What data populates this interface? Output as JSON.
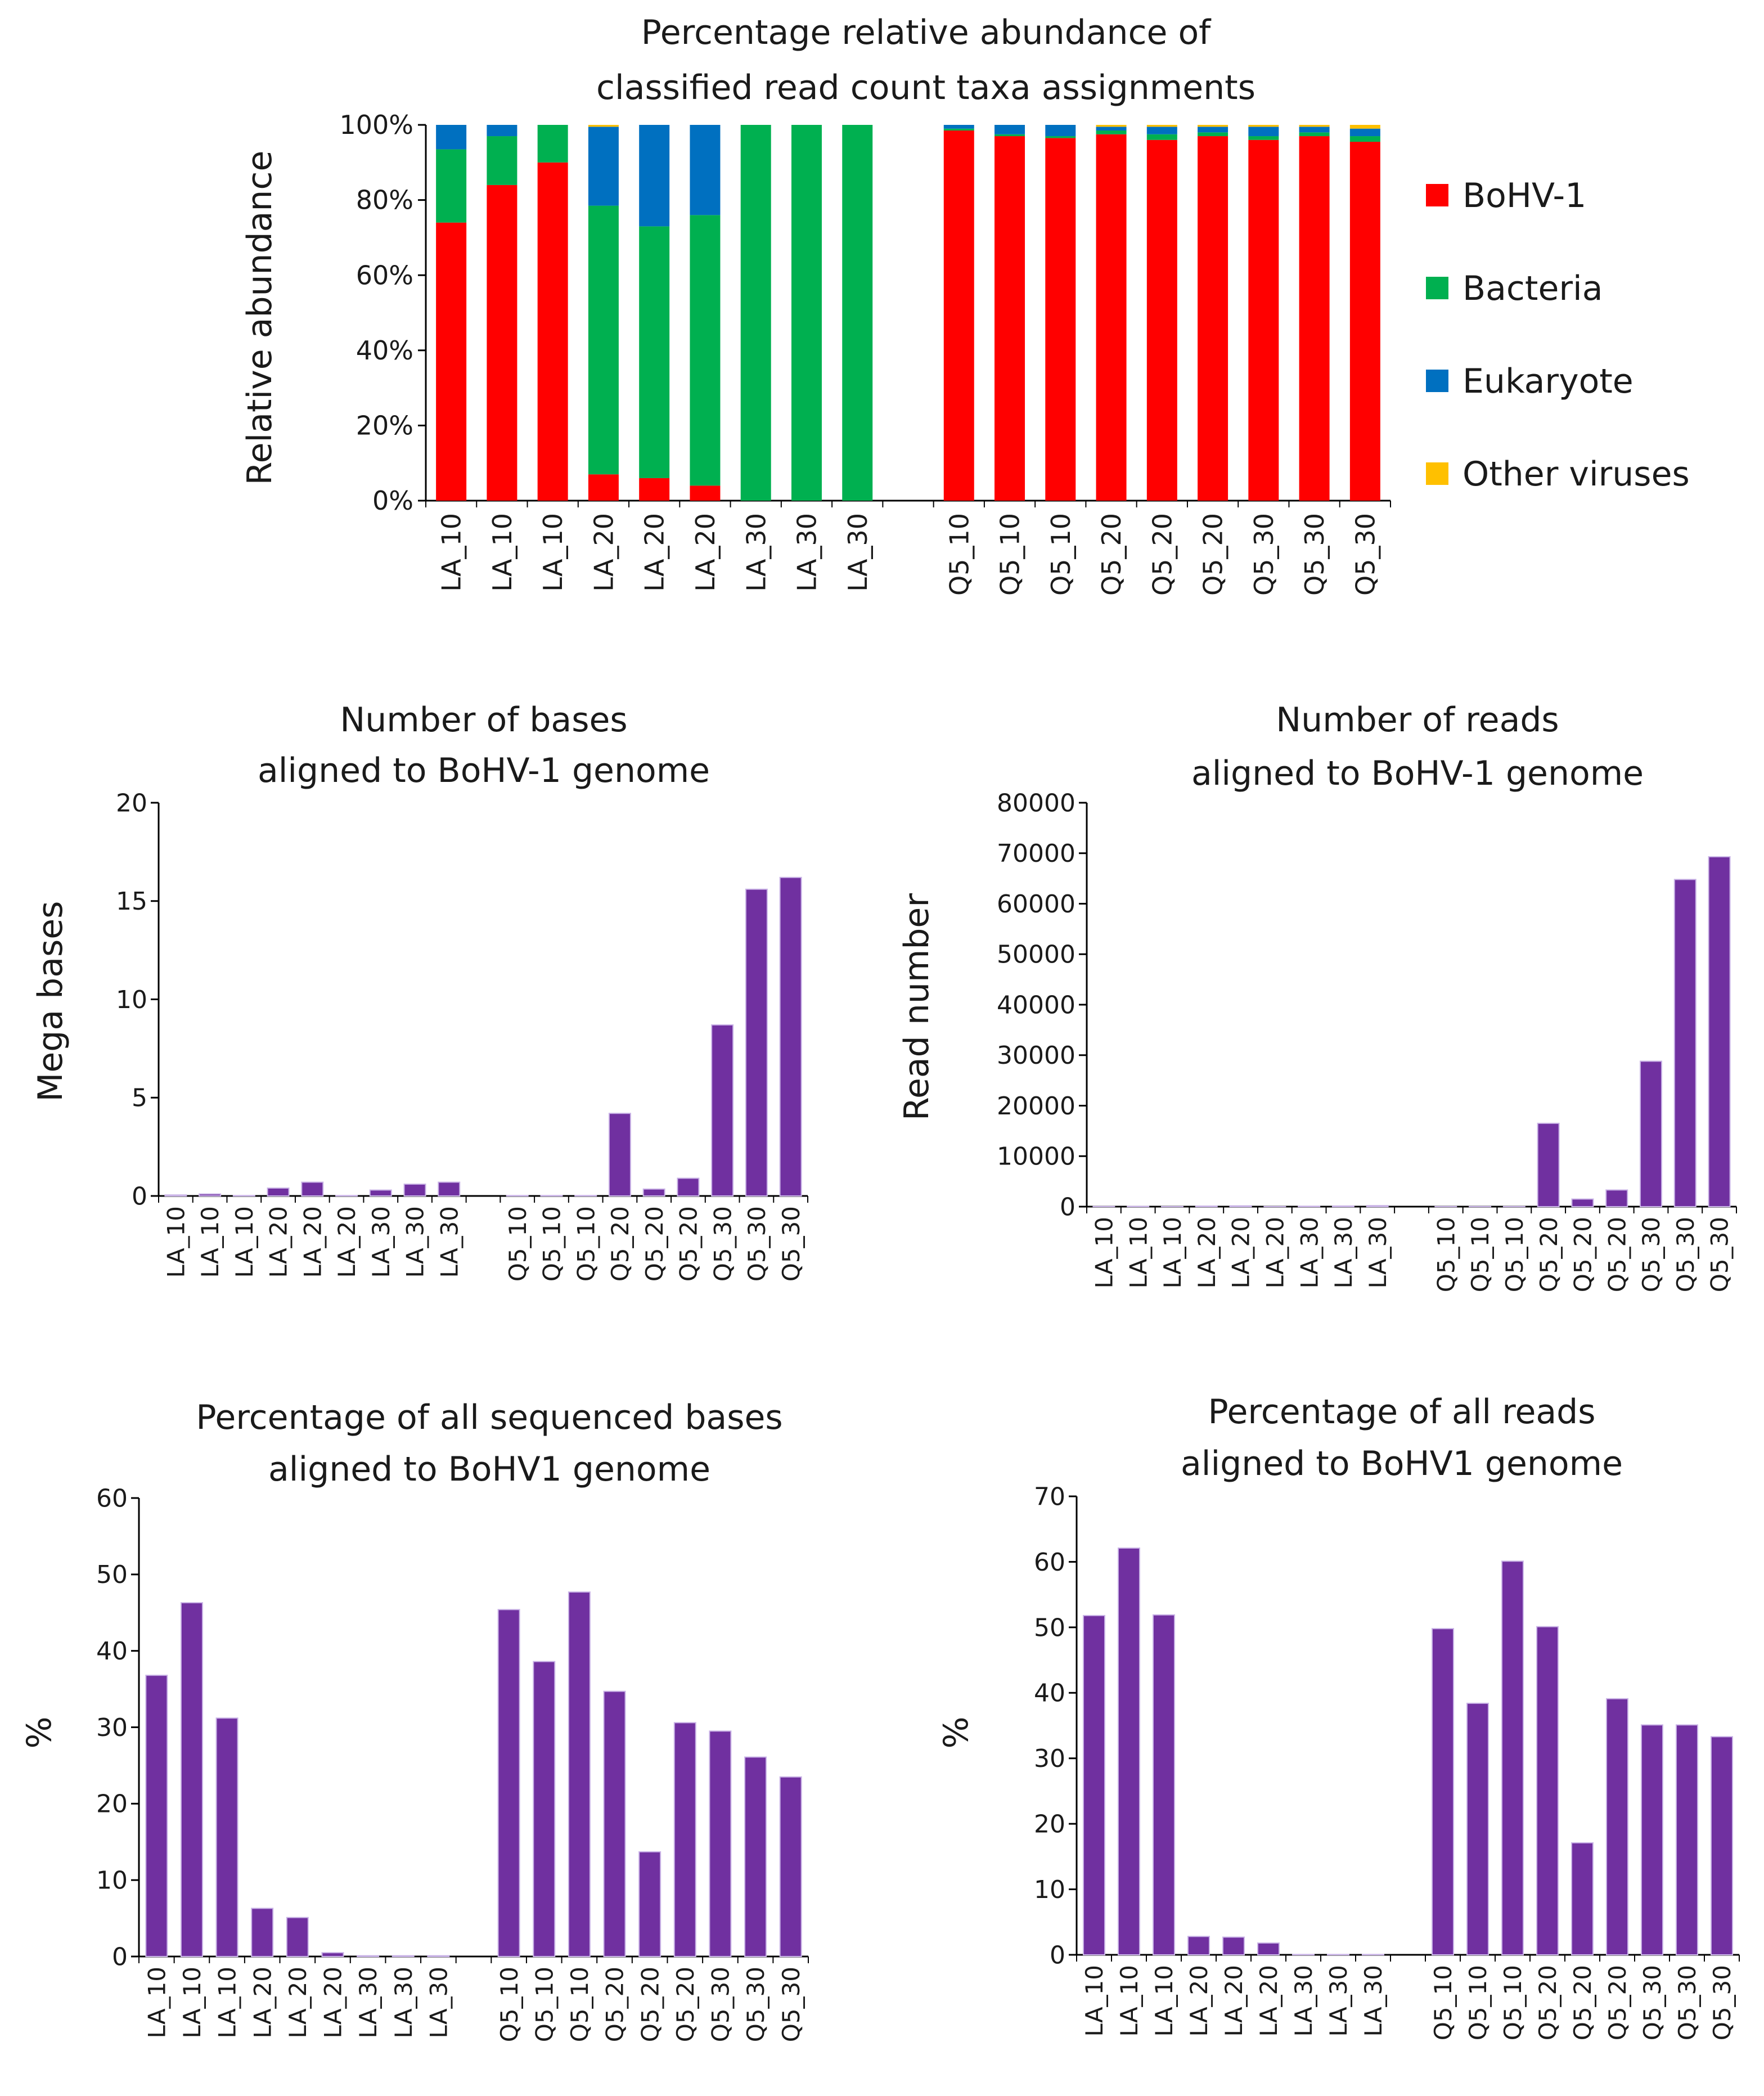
{
  "chart_data": [
    {
      "id": "abundance",
      "type": "bar",
      "stacked": true,
      "title": [
        "Percentage relative abundance of",
        "classified read count taxa assignments"
      ],
      "xlabel": "",
      "ylabel": "Relative abundance",
      "ylim": [
        0,
        100
      ],
      "yticks": [
        "0%",
        "20%",
        "40%",
        "60%",
        "80%",
        "100%"
      ],
      "grid": false,
      "legend": "right",
      "categories": [
        "LA_10",
        "LA_10",
        "LA_10",
        "LA_20",
        "LA_20",
        "LA_20",
        "LA_30",
        "LA_30",
        "LA_30",
        "",
        "Q5_10",
        "Q5_10",
        "Q5_10",
        "Q5_20",
        "Q5_20",
        "Q5_20",
        "Q5_30",
        "Q5_30",
        "Q5_30"
      ],
      "series": [
        {
          "name": "BoHV-1",
          "color": "#ff0000",
          "values": [
            74,
            84,
            90,
            7,
            6,
            4,
            0,
            0,
            0,
            null,
            98.5,
            97,
            96.5,
            97.5,
            96,
            97,
            96,
            97,
            95.5
          ]
        },
        {
          "name": "Bacteria",
          "color": "#00b050",
          "values": [
            19.5,
            13,
            10,
            71.5,
            67,
            72,
            100,
            100,
            100,
            null,
            0.5,
            0.5,
            0.5,
            1,
            1.5,
            1,
            1,
            1,
            1.5
          ]
        },
        {
          "name": "Eukaryote",
          "color": "#0070c0",
          "values": [
            6.5,
            3,
            0,
            21,
            27,
            24,
            0,
            0,
            0,
            null,
            1,
            2.5,
            3,
            1,
            2,
            1.5,
            2.5,
            1.5,
            2
          ]
        },
        {
          "name": "Other viruses",
          "color": "#ffc000",
          "values": [
            0,
            0,
            0,
            0.5,
            0,
            0,
            0,
            0,
            0,
            null,
            0,
            0,
            0,
            0.5,
            0.5,
            0.5,
            0.5,
            0.5,
            1
          ]
        }
      ]
    },
    {
      "id": "mega_bases",
      "type": "bar",
      "title": [
        "Number of bases",
        "aligned to BoHV-1 genome"
      ],
      "xlabel": "",
      "ylabel": "Mega bases",
      "ylim": [
        0,
        20
      ],
      "yticks": [
        "0",
        "5",
        "10",
        "15",
        "20"
      ],
      "grid": false,
      "color": "#7030a0",
      "categories": [
        "LA_10",
        "LA_10",
        "LA_10",
        "LA_20",
        "LA_20",
        "LA_20",
        "LA_30",
        "LA_30",
        "LA_30",
        "",
        "Q5_10",
        "Q5_10",
        "Q5_10",
        "Q5_20",
        "Q5_20",
        "Q5_20",
        "Q5_30",
        "Q5_30",
        "Q5_30"
      ],
      "values": [
        0.05,
        0.1,
        0.02,
        0.4,
        0.7,
        0.02,
        0.3,
        0.6,
        0.7,
        null,
        0.02,
        0.02,
        0.02,
        4.2,
        0.35,
        0.9,
        8.7,
        15.6,
        16.2
      ]
    },
    {
      "id": "read_number",
      "type": "bar",
      "title": [
        "Number of reads",
        "aligned to BoHV-1 genome"
      ],
      "xlabel": "",
      "ylabel": "Read number",
      "ylim": [
        0,
        80000
      ],
      "yticks": [
        "0",
        "10000",
        "20000",
        "30000",
        "40000",
        "50000",
        "60000",
        "70000",
        "80000"
      ],
      "grid": false,
      "color": "#7030a0",
      "categories": [
        "LA_10",
        "LA_10",
        "LA_10",
        "LA_20",
        "LA_20",
        "LA_20",
        "LA_30",
        "LA_30",
        "LA_30",
        "",
        "Q5_10",
        "Q5_10",
        "Q5_10",
        "Q5_20",
        "Q5_20",
        "Q5_20",
        "Q5_30",
        "Q5_30",
        "Q5_30"
      ],
      "values": [
        30,
        50,
        20,
        100,
        150,
        20,
        80,
        120,
        200,
        null,
        20,
        20,
        20,
        16500,
        1500,
        3300,
        28800,
        64800,
        69300
      ]
    },
    {
      "id": "pct_bases",
      "type": "bar",
      "title": [
        "Percentage of  all sequenced bases",
        "aligned to BoHV1 genome"
      ],
      "xlabel": "",
      "ylabel": "%",
      "ylim": [
        0,
        60
      ],
      "yticks": [
        "0",
        "10",
        "20",
        "30",
        "40",
        "50",
        "60"
      ],
      "grid": false,
      "color": "#7030a0",
      "categories": [
        "LA_10",
        "LA_10",
        "LA_10",
        "LA_20",
        "LA_20",
        "LA_20",
        "LA_30",
        "LA_30",
        "LA_30",
        "",
        "Q5_10",
        "Q5_10",
        "Q5_10",
        "Q5_20",
        "Q5_20",
        "Q5_20",
        "Q5_30",
        "Q5_30",
        "Q5_30"
      ],
      "values": [
        36.8,
        46.3,
        31.2,
        6.3,
        5.1,
        0.5,
        0.1,
        0.1,
        0.1,
        null,
        45.4,
        38.6,
        47.7,
        34.7,
        13.7,
        30.6,
        29.5,
        26.1,
        23.5
      ]
    },
    {
      "id": "pct_reads",
      "type": "bar",
      "title": [
        "Percentage of all reads",
        "aligned to BoHV1 genome"
      ],
      "xlabel": "",
      "ylabel": "%",
      "ylim": [
        0,
        70
      ],
      "yticks": [
        "0",
        "10",
        "20",
        "30",
        "40",
        "50",
        "60",
        "70"
      ],
      "grid": false,
      "color": "#7030a0",
      "categories": [
        "LA_10",
        "LA_10",
        "LA_10",
        "LA_20",
        "LA_20",
        "LA_20",
        "LA_30",
        "LA_30",
        "LA_30",
        "",
        "Q5_10",
        "Q5_10",
        "Q5_10",
        "Q5_20",
        "Q5_20",
        "Q5_20",
        "Q5_30",
        "Q5_30",
        "Q5_30"
      ],
      "values": [
        51.8,
        62.1,
        51.9,
        2.8,
        2.7,
        1.8,
        0.05,
        0.05,
        0.05,
        null,
        49.8,
        38.4,
        60.1,
        50.1,
        17.1,
        39.1,
        35.1,
        35.1,
        33.3
      ]
    }
  ]
}
